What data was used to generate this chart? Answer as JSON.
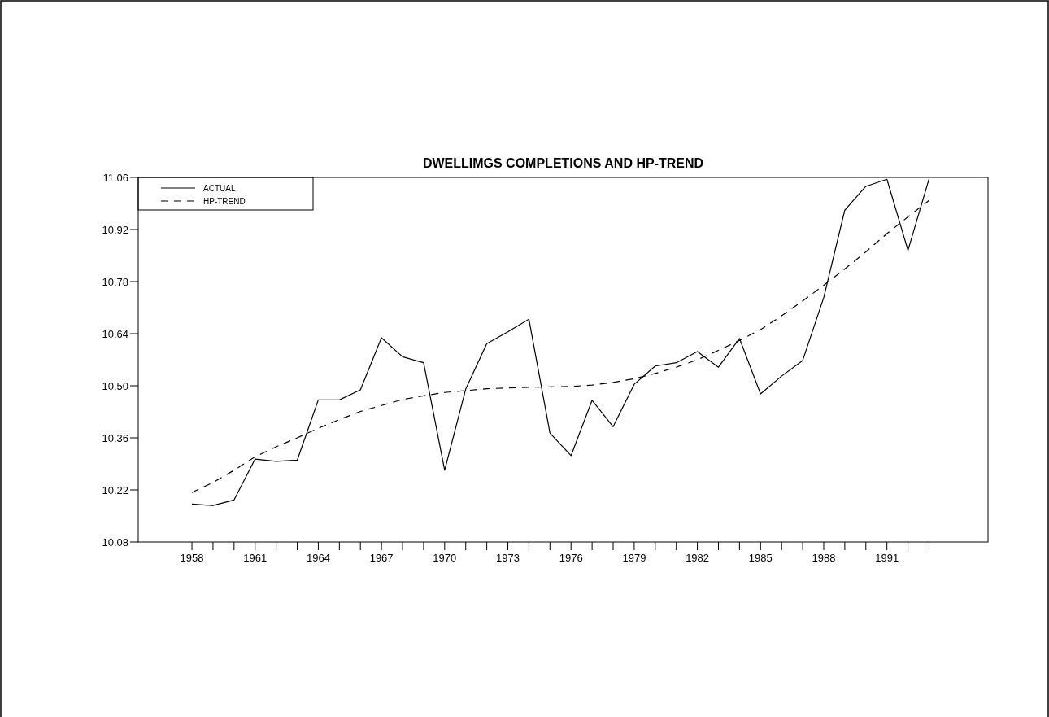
{
  "chart_data": {
    "type": "line",
    "title": "DWELLIMGS COMPLETIONS AND HP-TREND",
    "x": [
      1958,
      1959,
      1960,
      1961,
      1962,
      1963,
      1964,
      1965,
      1966,
      1967,
      1968,
      1969,
      1970,
      1971,
      1972,
      1973,
      1974,
      1975,
      1976,
      1977,
      1978,
      1979,
      1980,
      1981,
      1982,
      1983,
      1984,
      1985,
      1986,
      1987,
      1988,
      1989,
      1990,
      1991,
      1992,
      1993
    ],
    "series": [
      {
        "name": "ACTUAL",
        "color": "#000000",
        "line_style": "solid",
        "values": [
          10.182,
          10.178,
          10.193,
          10.303,
          10.297,
          10.3,
          10.462,
          10.462,
          10.489,
          10.629,
          10.578,
          10.562,
          10.273,
          10.491,
          10.613,
          10.645,
          10.679,
          10.373,
          10.312,
          10.461,
          10.39,
          10.504,
          10.553,
          10.562,
          10.592,
          10.55,
          10.627,
          10.478,
          10.526,
          10.568,
          10.737,
          10.972,
          11.036,
          11.055,
          10.864,
          11.056
        ]
      },
      {
        "name": "HP-TREND",
        "color": "#000000",
        "line_style": "dashed",
        "values": [
          10.213,
          10.24,
          10.273,
          10.309,
          10.336,
          10.36,
          10.386,
          10.409,
          10.431,
          10.447,
          10.463,
          10.473,
          10.482,
          10.487,
          10.492,
          10.494,
          10.496,
          10.497,
          10.498,
          10.502,
          10.509,
          10.519,
          10.533,
          10.55,
          10.57,
          10.595,
          10.622,
          10.651,
          10.688,
          10.728,
          10.77,
          10.814,
          10.86,
          10.909,
          10.954,
          10.998
        ]
      }
    ],
    "xlim": [
      1955.45,
      1995.8
    ],
    "xticks": [
      1958,
      {
        "value": 1959,
        "label": null
      },
      {
        "value": 1960,
        "label": null
      },
      1961,
      {
        "value": 1962,
        "label": null
      },
      {
        "value": 1963,
        "label": null
      },
      1964,
      {
        "value": 1965,
        "label": null
      },
      {
        "value": 1966,
        "label": null
      },
      1967,
      {
        "value": 1968,
        "label": null
      },
      {
        "value": 1969,
        "label": null
      },
      1970,
      {
        "value": 1971,
        "label": null
      },
      {
        "value": 1972,
        "label": null
      },
      1973,
      {
        "value": 1974,
        "label": null
      },
      {
        "value": 1975,
        "label": null
      },
      1976,
      {
        "value": 1977,
        "label": null
      },
      {
        "value": 1978,
        "label": null
      },
      1979,
      {
        "value": 1980,
        "label": null
      },
      {
        "value": 1981,
        "label": null
      },
      1982,
      {
        "value": 1983,
        "label": null
      },
      {
        "value": 1984,
        "label": null
      },
      1985,
      {
        "value": 1986,
        "label": null
      },
      {
        "value": 1987,
        "label": null
      },
      1988,
      {
        "value": 1989,
        "label": null
      },
      {
        "value": 1990,
        "label": null
      },
      1991,
      {
        "value": 1992,
        "label": null
      },
      {
        "value": 1993,
        "label": null
      }
    ],
    "ylim": [
      10.08,
      11.06
    ],
    "yticks": [
      {
        "value": 10.08,
        "label": "10.08"
      },
      {
        "value": 10.22,
        "label": "10.22"
      },
      {
        "value": 10.36,
        "label": "10.36"
      },
      {
        "value": 10.5,
        "label": "10.50"
      },
      {
        "value": 10.64,
        "label": "10.64"
      },
      {
        "value": 10.78,
        "label": "10.78"
      },
      {
        "value": 10.92,
        "label": "10.92"
      },
      {
        "value": 11.06,
        "label": "11.06"
      }
    ],
    "grid": false,
    "legend": "top left",
    "marker": "none"
  }
}
